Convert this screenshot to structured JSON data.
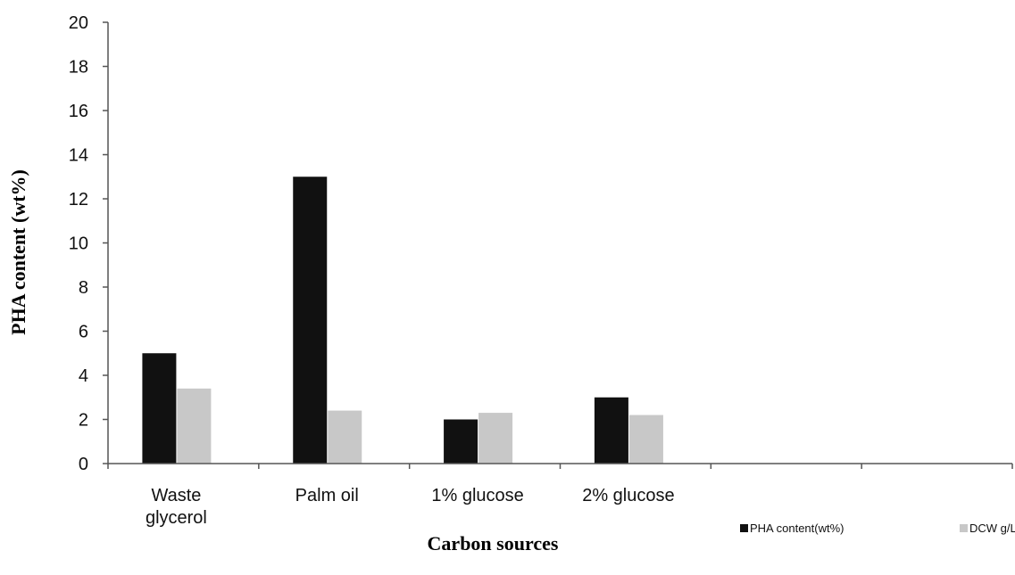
{
  "chart_data": {
    "type": "bar",
    "title": "",
    "xlabel": "Carbon sources",
    "ylabel": "PHA content (wt%)",
    "ylim": [
      0,
      20
    ],
    "yticks": [
      0,
      2,
      4,
      6,
      8,
      10,
      12,
      14,
      16,
      18,
      20
    ],
    "grid": false,
    "legend_position": "bottom-right",
    "categories": [
      [
        "Waste",
        "glycerol"
      ],
      [
        "Palm oil"
      ],
      [
        "1% glucose"
      ],
      [
        "2% glucose"
      ],
      [
        ""
      ],
      [
        ""
      ]
    ],
    "series": [
      {
        "name": "PHA content(wt%)",
        "color": "#111111",
        "values": [
          5.0,
          13.0,
          2.0,
          3.0,
          null,
          null
        ]
      },
      {
        "name": "DCW g/L",
        "color": "#c8c8c8",
        "values": [
          3.4,
          2.4,
          2.3,
          2.2,
          null,
          null
        ]
      }
    ]
  }
}
